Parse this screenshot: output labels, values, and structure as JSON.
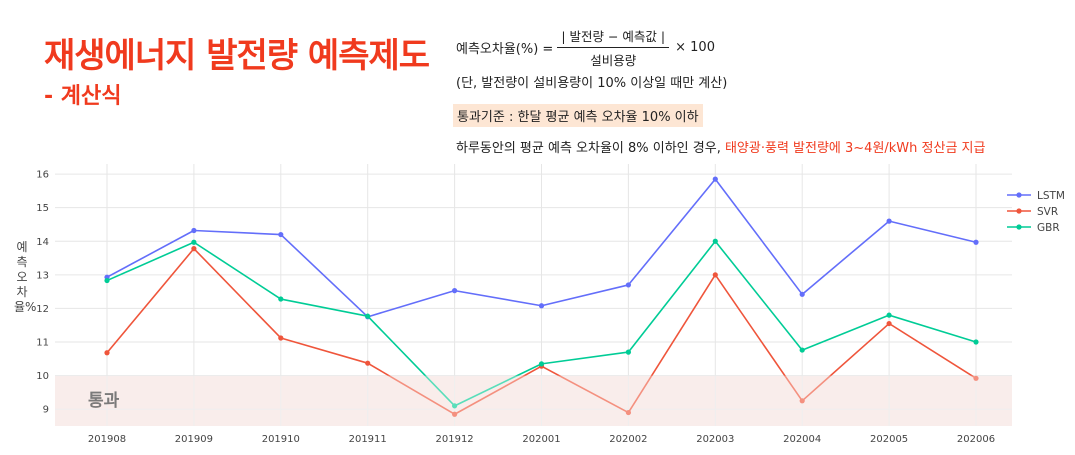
{
  "header": {
    "title": "재생에너지 발전량 예측제도",
    "subtitle": "- 계산식"
  },
  "formula": {
    "lhs": "예측오차율(%) =",
    "numerator": "| 발전량 − 예측값 |",
    "denominator": "설비용량",
    "multiplier": "× 100"
  },
  "note": "(단, 발전량이 설비용량이 10% 이상일 때만 계산)",
  "criterion": "통과기준 : 한달 평균 예측 오차율 10% 이하",
  "policy": {
    "prefix": "하루동안의 평균 예측 오차율이 8% 이하인 경우, ",
    "highlight": "태양광·풍력 발전량에 3~4원/kWh 정산금 지급"
  },
  "chart_data": {
    "type": "line",
    "ylabel": "예측오차율%",
    "ylim": [
      8.5,
      16.3
    ],
    "yticks": [
      9,
      10,
      11,
      12,
      13,
      14,
      15,
      16
    ],
    "x": [
      "201908",
      "201909",
      "201910",
      "201911",
      "201912",
      "202001",
      "202002",
      "202003",
      "202004",
      "202005",
      "202006"
    ],
    "threshold": 10,
    "threshold_label": "통과",
    "legend_position": "top-right",
    "grid": true,
    "series": [
      {
        "name": "LSTM",
        "color": "#636efa",
        "values": [
          12.93,
          14.32,
          14.2,
          11.75,
          12.53,
          12.08,
          12.7,
          15.85,
          12.42,
          14.6,
          13.97
        ]
      },
      {
        "name": "SVR",
        "color": "#ef553b",
        "values": [
          10.68,
          13.78,
          11.12,
          10.37,
          8.85,
          10.28,
          8.9,
          13.0,
          9.25,
          11.55,
          9.92
        ]
      },
      {
        "name": "GBR",
        "color": "#00cc96",
        "values": [
          12.83,
          13.97,
          12.28,
          11.77,
          9.1,
          10.35,
          10.7,
          14.0,
          10.76,
          11.8,
          11.0
        ]
      }
    ]
  }
}
